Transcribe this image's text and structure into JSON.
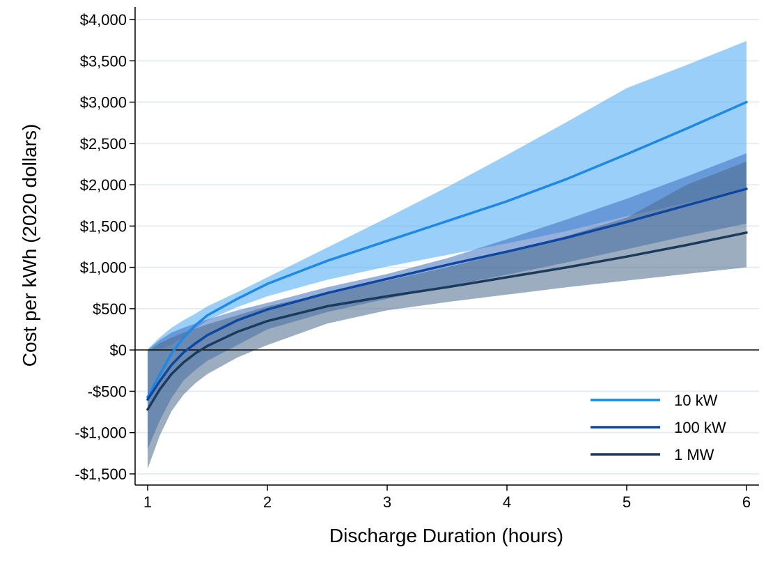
{
  "chart_data": {
    "type": "line",
    "xlabel": "Discharge Duration (hours)",
    "ylabel": "Cost per kWh (2020 dollars)",
    "xlim": [
      1,
      6
    ],
    "ylim": [
      -1500,
      4000
    ],
    "xticks": [
      "1",
      "2",
      "3",
      "4",
      "5",
      "6"
    ],
    "yticks": [
      {
        "value": 4000,
        "label": "$4,000"
      },
      {
        "value": 3500,
        "label": "$3,500"
      },
      {
        "value": 3000,
        "label": "$3,000"
      },
      {
        "value": 2500,
        "label": "$2,500"
      },
      {
        "value": 2000,
        "label": "$2,000"
      },
      {
        "value": 1500,
        "label": "$1,500"
      },
      {
        "value": 1000,
        "label": "$1,000"
      },
      {
        "value": 500,
        "label": "$500"
      },
      {
        "value": 0,
        "label": "$0"
      },
      {
        "value": -500,
        "label": "-$500"
      },
      {
        "value": -1000,
        "label": "-$1,000"
      },
      {
        "value": -1500,
        "label": "-$1,500"
      }
    ],
    "grid": "horizontal",
    "reference_line_y": 0,
    "legend_position": "bottom-right",
    "series": [
      {
        "name": "10 kW",
        "color": "#1E88E5",
        "band_color": "#64B5F6",
        "x": [
          1.0,
          1.1,
          1.2,
          1.3,
          1.4,
          1.5,
          1.75,
          2.0,
          2.5,
          3.0,
          3.5,
          4.0,
          4.5,
          5.0,
          5.5,
          6.0
        ],
        "values": [
          -570,
          -300,
          -40,
          150,
          300,
          420,
          620,
          800,
          1080,
          1320,
          1560,
          1800,
          2070,
          2370,
          2680,
          3000
        ],
        "lower": [
          -20,
          0,
          60,
          160,
          260,
          360,
          520,
          650,
          850,
          1010,
          1150,
          1290,
          1440,
          1620,
          1780,
          1950
        ],
        "upper": [
          10,
          150,
          270,
          360,
          440,
          530,
          700,
          880,
          1240,
          1600,
          1970,
          2360,
          2760,
          3170,
          3450,
          3740
        ]
      },
      {
        "name": "100 kW",
        "color": "#0D47A1",
        "band_color": "#3F6FBF",
        "x": [
          1.0,
          1.1,
          1.2,
          1.3,
          1.4,
          1.5,
          1.75,
          2.0,
          2.5,
          3.0,
          3.5,
          4.0,
          4.5,
          5.0,
          5.5,
          6.0
        ],
        "values": [
          -600,
          -380,
          -180,
          -30,
          80,
          180,
          360,
          490,
          690,
          860,
          1030,
          1190,
          1360,
          1550,
          1750,
          1950
        ],
        "lower": [
          -1200,
          -860,
          -580,
          -370,
          -240,
          -130,
          60,
          250,
          460,
          620,
          770,
          910,
          1060,
          1220,
          1380,
          1530
        ],
        "upper": [
          0,
          120,
          210,
          270,
          320,
          370,
          480,
          570,
          760,
          920,
          1110,
          1340,
          1580,
          1830,
          2100,
          2380
        ]
      },
      {
        "name": "1 MW",
        "color": "#1B3A5C",
        "band_color": "#4A6A8A",
        "x": [
          1.0,
          1.1,
          1.2,
          1.3,
          1.4,
          1.5,
          1.75,
          2.0,
          2.5,
          3.0,
          3.5,
          4.0,
          4.5,
          5.0,
          5.5,
          6.0
        ],
        "values": [
          -720,
          -480,
          -290,
          -150,
          -40,
          50,
          220,
          350,
          530,
          650,
          760,
          880,
          1000,
          1130,
          1270,
          1420
        ],
        "lower": [
          -1440,
          -1040,
          -740,
          -540,
          -400,
          -290,
          -90,
          60,
          320,
          480,
          580,
          670,
          760,
          840,
          920,
          1000
        ],
        "upper": [
          -20,
          80,
          150,
          210,
          260,
          310,
          420,
          530,
          690,
          840,
          1000,
          1180,
          1380,
          1600,
          2000,
          2280
        ]
      }
    ]
  }
}
